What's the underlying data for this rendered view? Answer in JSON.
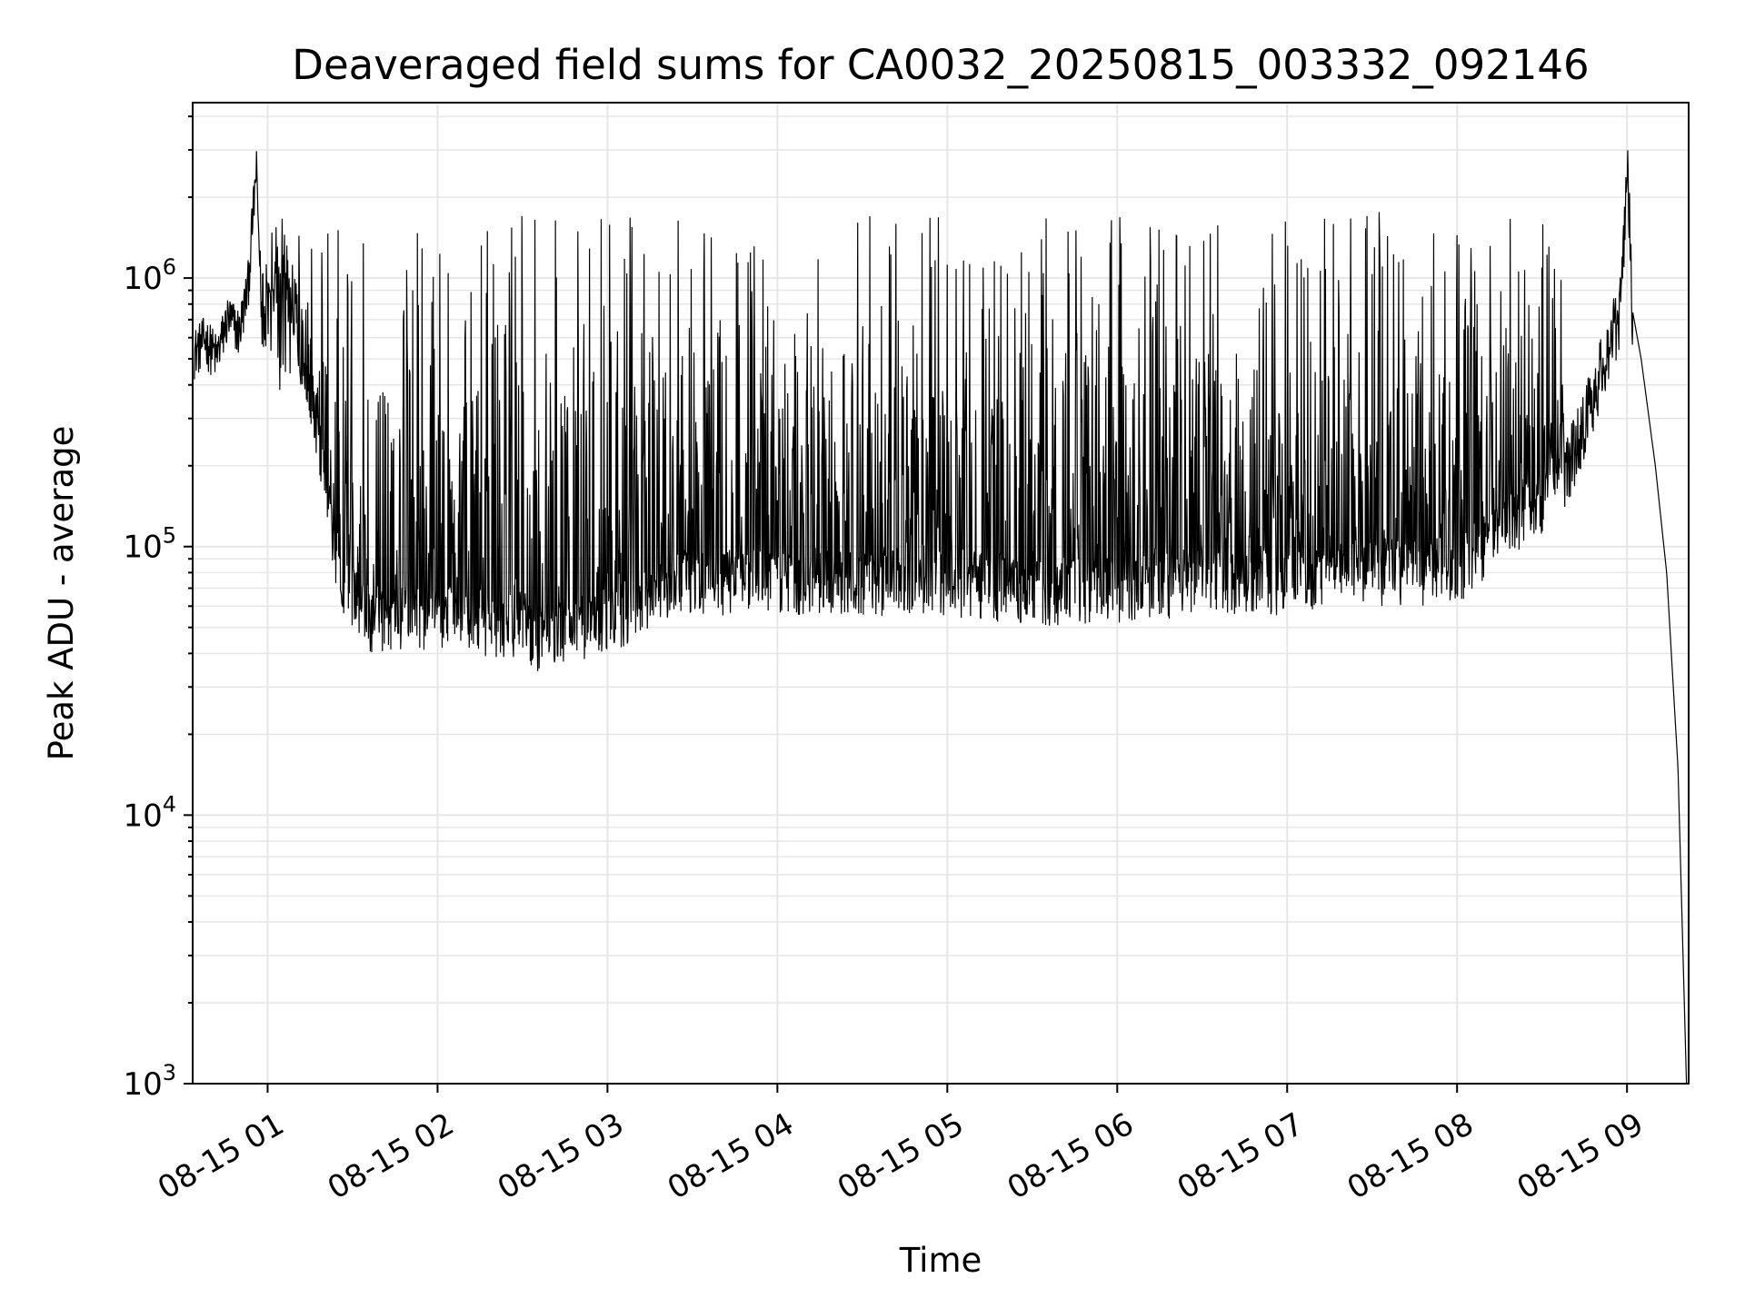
{
  "chart_data": {
    "type": "line",
    "title": "Deaveraged field sums for CA0032_20250815_003332_092146",
    "xlabel": "Time",
    "ylabel": "Peak ADU - average",
    "yscale": "log",
    "ylim": [
      1000,
      4500000
    ],
    "xlim": [
      "2025-08-15 00:33:32",
      "2025-08-15 09:21:46"
    ],
    "grid": true,
    "line_color": "#000000",
    "grid_color": "#e6e6e6",
    "x_ticks": [
      {
        "t": "2025-08-15 01:00",
        "label": "08-15 01"
      },
      {
        "t": "2025-08-15 02:00",
        "label": "08-15 02"
      },
      {
        "t": "2025-08-15 03:00",
        "label": "08-15 03"
      },
      {
        "t": "2025-08-15 04:00",
        "label": "08-15 04"
      },
      {
        "t": "2025-08-15 05:00",
        "label": "08-15 05"
      },
      {
        "t": "2025-08-15 06:00",
        "label": "08-15 06"
      },
      {
        "t": "2025-08-15 07:00",
        "label": "08-15 07"
      },
      {
        "t": "2025-08-15 08:00",
        "label": "08-15 08"
      },
      {
        "t": "2025-08-15 09:00",
        "label": "08-15 09"
      }
    ],
    "y_ticks": [
      {
        "value": 1000,
        "base": "10",
        "exp": "3"
      },
      {
        "value": 10000,
        "base": "10",
        "exp": "4"
      },
      {
        "value": 100000,
        "base": "10",
        "exp": "5"
      },
      {
        "value": 1000000,
        "base": "10",
        "exp": "6"
      }
    ],
    "series": [
      {
        "values_note": "approximate envelope samples (time, value)",
        "points": [
          [
            "2025-08-15 00:34",
            520000
          ],
          [
            "2025-08-15 00:38",
            580000
          ],
          [
            "2025-08-15 00:42",
            500000
          ],
          [
            "2025-08-15 00:46",
            700000
          ],
          [
            "2025-08-15 00:50",
            620000
          ],
          [
            "2025-08-15 00:53",
            900000
          ],
          [
            "2025-08-15 00:56",
            2500000
          ],
          [
            "2025-08-15 00:58",
            700000
          ],
          [
            "2025-08-15 01:05",
            1000000
          ],
          [
            "2025-08-15 01:15",
            300000
          ],
          [
            "2025-08-15 01:25",
            60000
          ],
          [
            "2025-08-15 01:35",
            40000
          ],
          [
            "2025-08-15 02:00",
            40000
          ],
          [
            "2025-08-15 02:30",
            38000
          ],
          [
            "2025-08-15 02:35",
            34000
          ],
          [
            "2025-08-15 03:00",
            40000
          ],
          [
            "2025-08-15 03:30",
            55000
          ],
          [
            "2025-08-15 04:00",
            55000
          ],
          [
            "2025-08-15 04:30",
            55000
          ],
          [
            "2025-08-15 05:00",
            55000
          ],
          [
            "2025-08-15 05:30",
            50000
          ],
          [
            "2025-08-15 06:00",
            52000
          ],
          [
            "2025-08-15 06:30",
            55000
          ],
          [
            "2025-08-15 07:00",
            55000
          ],
          [
            "2025-08-15 07:30",
            60000
          ],
          [
            "2025-08-15 08:00",
            60000
          ],
          [
            "2025-08-15 08:30",
            110000
          ],
          [
            "2025-08-15 08:45",
            300000
          ],
          [
            "2025-08-15 08:58",
            800000
          ],
          [
            "2025-08-15 09:00",
            3000000
          ],
          [
            "2025-08-15 09:02",
            750000
          ],
          [
            "2025-08-15 09:05",
            500000
          ],
          [
            "2025-08-15 09:10",
            200000
          ],
          [
            "2025-08-15 09:14",
            80000
          ],
          [
            "2025-08-15 09:18",
            15000
          ],
          [
            "2025-08-15 09:21",
            1000
          ]
        ]
      }
    ]
  }
}
